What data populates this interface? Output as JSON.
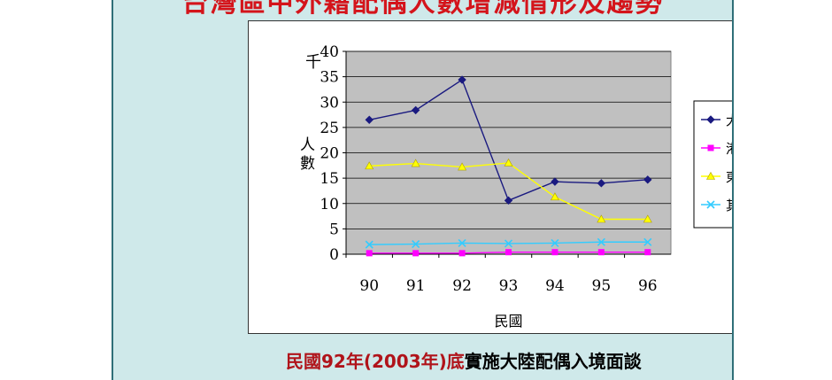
{
  "slide": {
    "title": "台灣區中外籍配偶人數增減情形及趨勢",
    "subtitle_highlight": "民國92年(2003年)底",
    "subtitle_rest": "實施大陸配偶入境面談",
    "background_color": "#cfe9ea",
    "title_color": "#d4141b"
  },
  "chart_data": {
    "type": "line",
    "x": [
      "90",
      "91",
      "92",
      "93",
      "94",
      "95",
      "96"
    ],
    "xlabel": "民國",
    "ylabel": "人數",
    "yunit": "千",
    "ylim": [
      0,
      40
    ],
    "yticks": [
      "0",
      "5",
      "10",
      "15",
      "20",
      "25",
      "30",
      "35",
      "40"
    ],
    "grid": true,
    "plot_background": "#c0c0c0",
    "legend": "right",
    "series": [
      {
        "name": "大陸地區",
        "color": "#1a1a80",
        "marker": "diamond",
        "values": [
          26.5,
          28.4,
          34.4,
          10.6,
          14.3,
          14.0,
          14.7
        ]
      },
      {
        "name": "港澳地區",
        "color": "#ff00ff",
        "marker": "square",
        "values": [
          0.2,
          0.2,
          0.2,
          0.4,
          0.4,
          0.4,
          0.4
        ]
      },
      {
        "name": "東南亞地區",
        "color": "#ffff00",
        "marker": "triangle",
        "values": [
          17.4,
          17.9,
          17.2,
          18.0,
          11.3,
          6.9,
          6.9
        ]
      },
      {
        "name": "其他地區",
        "color": "#33ccff",
        "marker": "x",
        "values": [
          1.9,
          2.0,
          2.2,
          2.1,
          2.2,
          2.4,
          2.4
        ]
      }
    ]
  }
}
